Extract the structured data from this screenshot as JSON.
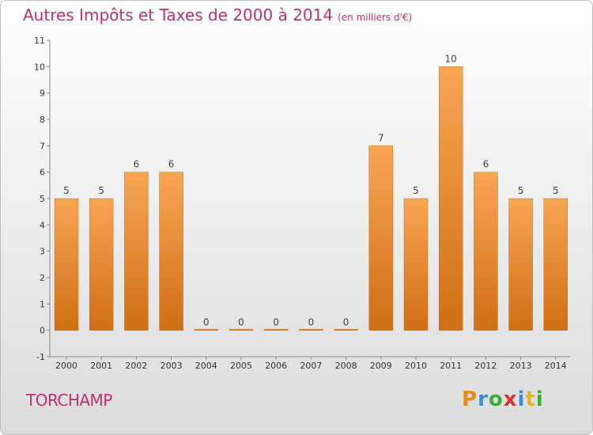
{
  "header": {
    "title": "Autres Impôts et Taxes de 2000 à 2014",
    "unit": "(en milliers d'€)"
  },
  "footer": {
    "commune": "TORCHAMP",
    "logo": "Proxiti"
  },
  "colors": {
    "bar": "#f0922e",
    "bar_light": "#f7a654",
    "bar_dark": "#d06e14",
    "title": "#c0306a"
  },
  "chart_data": {
    "type": "bar",
    "title": "Autres Impôts et Taxes de 2000 à 2014",
    "categories": [
      "2000",
      "2001",
      "2002",
      "2003",
      "2004",
      "2005",
      "2006",
      "2007",
      "2008",
      "2009",
      "2010",
      "2011",
      "2012",
      "2013",
      "2014"
    ],
    "values": [
      5,
      5,
      6,
      6,
      0,
      0,
      0,
      0,
      0,
      7,
      5,
      10,
      6,
      5,
      5
    ],
    "ylim": [
      -1,
      11
    ],
    "yticks": [
      -1,
      0,
      1,
      2,
      3,
      4,
      5,
      6,
      7,
      8,
      9,
      10,
      11
    ],
    "grid": false,
    "legend": "none"
  }
}
